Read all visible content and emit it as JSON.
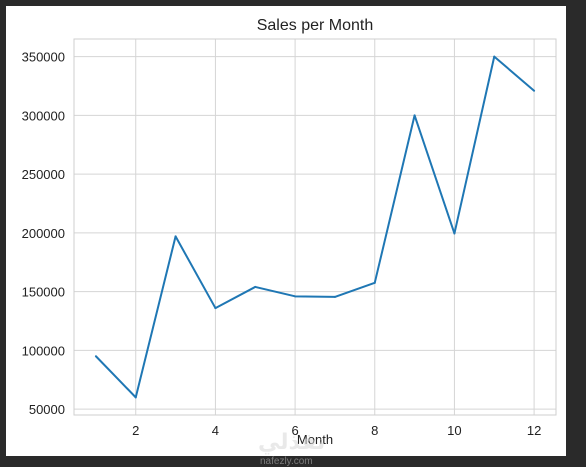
{
  "chart_data": {
    "type": "line",
    "title": "Sales per Month",
    "xlabel": "Month",
    "ylabel": "",
    "x": [
      1,
      2,
      3,
      4,
      5,
      6,
      7,
      8,
      9,
      10,
      11,
      12
    ],
    "series": [
      {
        "values": [
          95000,
          60000,
          197000,
          136000,
          154000,
          146000,
          145500,
          157500,
          300000,
          199500,
          350000,
          321000
        ]
      }
    ],
    "xticks": [
      2,
      4,
      6,
      8,
      10,
      12
    ],
    "yticks": [
      50000,
      100000,
      150000,
      200000,
      250000,
      300000,
      350000
    ],
    "xlim": [
      0.45,
      12.55
    ],
    "ylim": [
      45000,
      365000
    ],
    "grid": true,
    "line_color": "#1f77b4",
    "grid_color": "#d5d5d5",
    "spine_color": "#cfcfcf"
  },
  "watermark": {
    "mark": "نفذلي",
    "text": "nafezly.com"
  }
}
